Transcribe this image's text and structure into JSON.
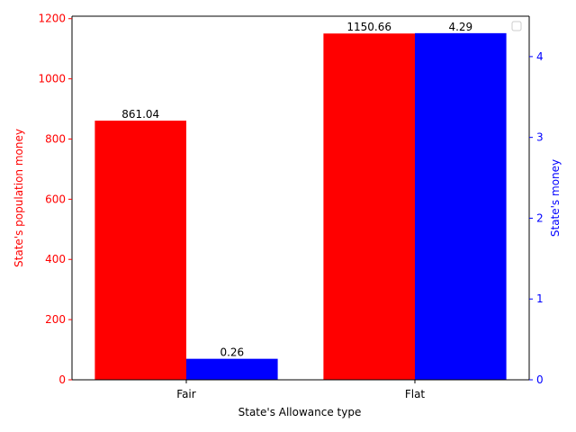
{
  "chart_data": {
    "type": "bar",
    "categories": [
      "Fair",
      "Flat"
    ],
    "xlabel": "State's Allowance type",
    "series": [
      {
        "axis": "left",
        "color": "#ff0000",
        "values": [
          861.04,
          1150.66
        ],
        "labels": [
          "861.04",
          "1150.66"
        ]
      },
      {
        "axis": "right",
        "color": "#0000ff",
        "values": [
          0.26,
          4.29
        ],
        "labels": [
          "0.26",
          "4.29"
        ]
      }
    ],
    "y_left": {
      "label": "State's population money",
      "color": "#ff0000",
      "lim": [
        0,
        1208.19
      ],
      "ticks": [
        0,
        200,
        400,
        600,
        800,
        1000,
        1200
      ],
      "tick_labels": [
        "0",
        "200",
        "400",
        "600",
        "800",
        "1000",
        "1200"
      ]
    },
    "y_right": {
      "label": "State's money",
      "color": "#0000ff",
      "lim": [
        0,
        4.5
      ],
      "ticks": [
        0,
        1,
        2,
        3,
        4
      ],
      "tick_labels": [
        "0",
        "1",
        "2",
        "3",
        "4"
      ]
    },
    "legend": {
      "placement": "top-right",
      "entries": []
    },
    "grid": false
  }
}
